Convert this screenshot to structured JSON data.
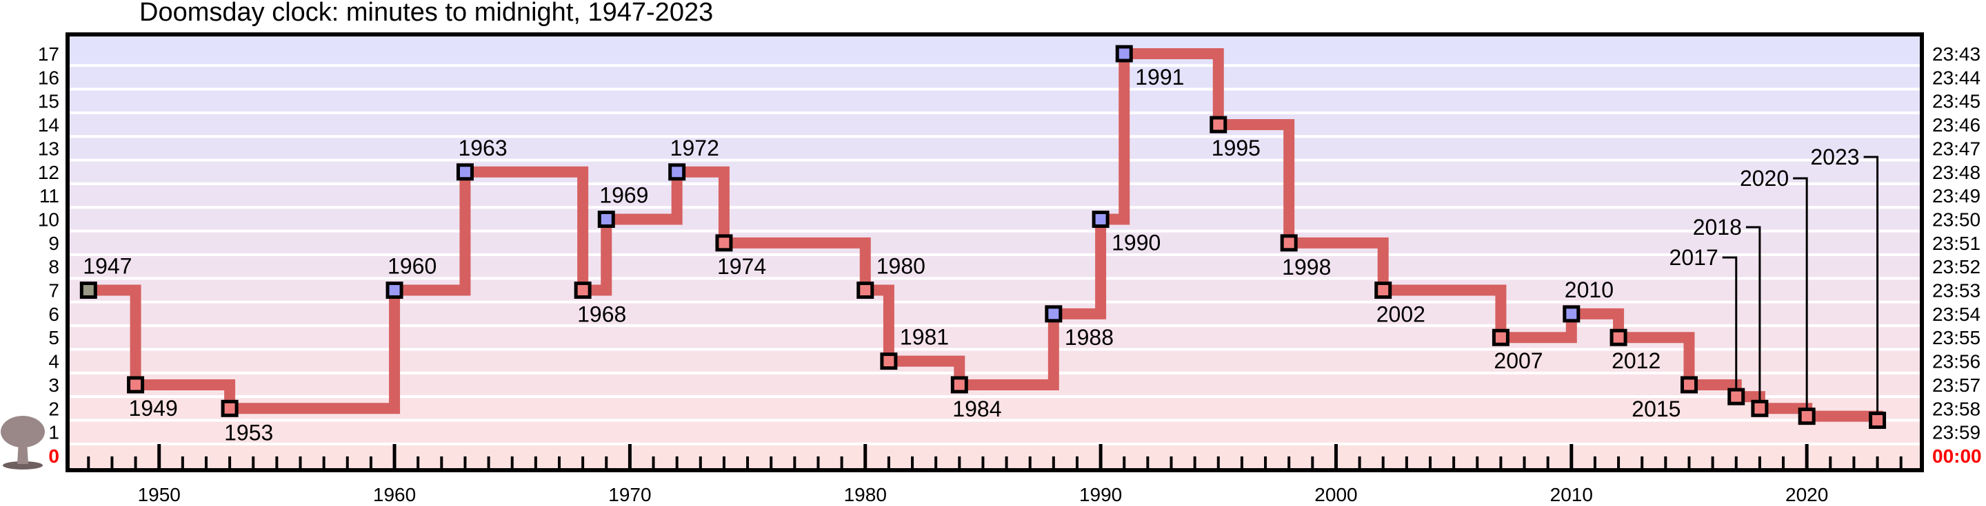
{
  "chart_data": {
    "type": "line",
    "title": "Doomsday clock: minutes to midnight, 1947-2023",
    "xlim": [
      1946.2,
      2024.8
    ],
    "ylim": [
      0,
      17
    ],
    "x_ticks": [
      1950,
      1960,
      1970,
      1980,
      1990,
      2000,
      2010,
      2020
    ],
    "y_ticks_left": [
      "0",
      "1",
      "2",
      "3",
      "4",
      "5",
      "6",
      "7",
      "8",
      "9",
      "10",
      "11",
      "12",
      "13",
      "14",
      "15",
      "16",
      "17"
    ],
    "y_ticks_right": [
      "00:00",
      "23:59",
      "23:58",
      "23:57",
      "23:56",
      "23:55",
      "23:54",
      "23:53",
      "23:52",
      "23:51",
      "23:50",
      "23:49",
      "23:48",
      "23:47",
      "23:46",
      "23:45",
      "23:44",
      "23:43"
    ],
    "grid": true,
    "icon": "mushroom-cloud-icon",
    "colors": {
      "line": "#d66060",
      "point_forward": "#f08080",
      "point_back": "#9b9bf5",
      "point_initial": "#9a9a86",
      "zero_label": "#ff0000",
      "band_top": "#e2e2fd",
      "band_bottom": "#fde2e2"
    },
    "series": [
      {
        "points": [
          {
            "x": 1947,
            "y": 7,
            "label": "1947",
            "kind": "initial"
          },
          {
            "x": 1949,
            "y": 3,
            "label": "1949",
            "kind": "forward"
          },
          {
            "x": 1953,
            "y": 2,
            "label": "1953",
            "kind": "forward"
          },
          {
            "x": 1960,
            "y": 7,
            "label": "1960",
            "kind": "back"
          },
          {
            "x": 1963,
            "y": 12,
            "label": "1963",
            "kind": "back"
          },
          {
            "x": 1968,
            "y": 7,
            "label": "1968",
            "kind": "forward"
          },
          {
            "x": 1969,
            "y": 10,
            "label": "1969",
            "kind": "back"
          },
          {
            "x": 1972,
            "y": 12,
            "label": "1972",
            "kind": "back"
          },
          {
            "x": 1974,
            "y": 9,
            "label": "1974",
            "kind": "forward"
          },
          {
            "x": 1980,
            "y": 7,
            "label": "1980",
            "kind": "forward"
          },
          {
            "x": 1981,
            "y": 4,
            "label": "1981",
            "kind": "forward"
          },
          {
            "x": 1984,
            "y": 3,
            "label": "1984",
            "kind": "forward"
          },
          {
            "x": 1988,
            "y": 6,
            "label": "1988",
            "kind": "back"
          },
          {
            "x": 1990,
            "y": 10,
            "label": "1990",
            "kind": "back"
          },
          {
            "x": 1991,
            "y": 17,
            "label": "1991",
            "kind": "back"
          },
          {
            "x": 1995,
            "y": 14,
            "label": "1995",
            "kind": "forward"
          },
          {
            "x": 1998,
            "y": 9,
            "label": "1998",
            "kind": "forward"
          },
          {
            "x": 2002,
            "y": 7,
            "label": "2002",
            "kind": "forward"
          },
          {
            "x": 2007,
            "y": 5,
            "label": "2007",
            "kind": "forward"
          },
          {
            "x": 2010,
            "y": 6,
            "label": "2010",
            "kind": "back"
          },
          {
            "x": 2012,
            "y": 5,
            "label": "2012",
            "kind": "forward"
          },
          {
            "x": 2015,
            "y": 3,
            "label": "2015",
            "kind": "forward"
          },
          {
            "x": 2017,
            "y": 2.5,
            "label": "2017",
            "kind": "forward"
          },
          {
            "x": 2018,
            "y": 2,
            "label": "2018",
            "kind": "forward"
          },
          {
            "x": 2020,
            "y": 1.67,
            "label": "2020",
            "kind": "forward"
          },
          {
            "x": 2023,
            "y": 1.5,
            "label": "2023",
            "kind": "forward"
          }
        ]
      }
    ]
  }
}
